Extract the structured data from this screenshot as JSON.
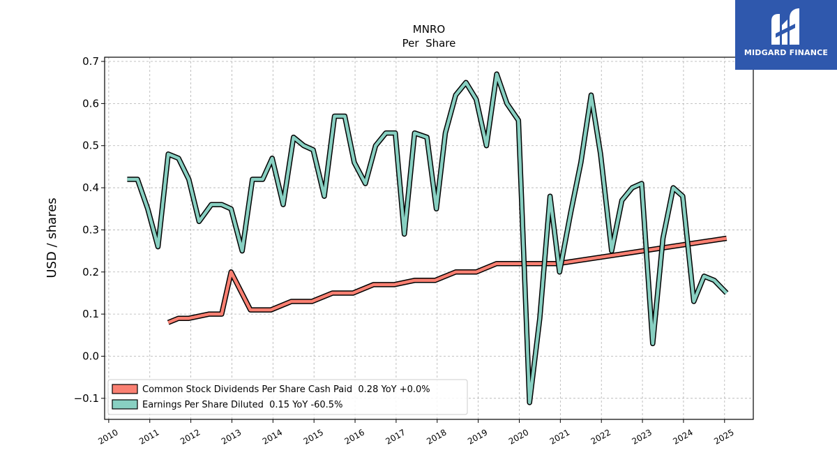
{
  "brand": {
    "name": "MIDGARD FINANCE",
    "color": "#2f58ad",
    "icon": "midgard-m-logo-icon"
  },
  "chart_data": {
    "type": "line",
    "title": "MNRO",
    "subtitle": "Per  Share",
    "xlabel": "",
    "ylabel": "USD / shares",
    "xlim": [
      2009.9,
      2025.7
    ],
    "ylim": [
      -0.15,
      0.71
    ],
    "x_ticks": [
      "2010",
      "2011",
      "2012",
      "2013",
      "2014",
      "2015",
      "2016",
      "2017",
      "2018",
      "2019",
      "2020",
      "2021",
      "2022",
      "2023",
      "2024",
      "2025"
    ],
    "y_ticks": [
      "−0.1",
      "0.0",
      "0.1",
      "0.2",
      "0.3",
      "0.4",
      "0.5",
      "0.6",
      "0.7"
    ],
    "grid": true,
    "legend_position": "lower-left",
    "series": [
      {
        "name": "Common Stock Dividends Per Share Cash Paid",
        "legend_label": "Common Stock Dividends Per Share Cash Paid  0.28 YoY +0.0%",
        "color": "#fa8072",
        "x": [
          2011.45,
          2011.7,
          2011.95,
          2012.45,
          2012.75,
          2012.98,
          2013.45,
          2013.95,
          2014.45,
          2014.95,
          2015.45,
          2015.95,
          2016.45,
          2016.95,
          2017.45,
          2017.95,
          2018.45,
          2018.95,
          2019.45,
          2019.95,
          2020.45,
          2020.95,
          2025.05
        ],
        "y": [
          0.08,
          0.09,
          0.09,
          0.1,
          0.1,
          0.2,
          0.11,
          0.11,
          0.13,
          0.13,
          0.15,
          0.15,
          0.17,
          0.17,
          0.18,
          0.18,
          0.2,
          0.2,
          0.22,
          0.22,
          0.22,
          0.22,
          0.28
        ]
      },
      {
        "name": "Earnings Per Share Diluted",
        "legend_label": "Earnings Per Share Diluted  0.15 YoY -60.5%",
        "color": "#88d0c2",
        "x": [
          2010.45,
          2010.7,
          2010.95,
          2011.2,
          2011.45,
          2011.7,
          2011.95,
          2012.2,
          2012.5,
          2012.75,
          2012.98,
          2013.25,
          2013.5,
          2013.75,
          2013.98,
          2014.25,
          2014.5,
          2014.75,
          2014.98,
          2015.25,
          2015.5,
          2015.75,
          2015.98,
          2016.25,
          2016.5,
          2016.75,
          2016.98,
          2017.2,
          2017.45,
          2017.75,
          2017.98,
          2018.2,
          2018.45,
          2018.7,
          2018.95,
          2019.2,
          2019.45,
          2019.7,
          2019.98,
          2020.25,
          2020.5,
          2020.75,
          2020.98,
          2021.25,
          2021.5,
          2021.75,
          2021.98,
          2022.25,
          2022.5,
          2022.75,
          2022.98,
          2023.25,
          2023.5,
          2023.75,
          2023.98,
          2024.25,
          2024.5,
          2024.75,
          2025.05
        ],
        "y": [
          0.42,
          0.42,
          0.35,
          0.26,
          0.48,
          0.47,
          0.42,
          0.32,
          0.36,
          0.36,
          0.35,
          0.25,
          0.42,
          0.42,
          0.47,
          0.36,
          0.52,
          0.5,
          0.49,
          0.38,
          0.57,
          0.57,
          0.46,
          0.41,
          0.5,
          0.53,
          0.53,
          0.29,
          0.53,
          0.52,
          0.35,
          0.53,
          0.62,
          0.65,
          0.61,
          0.5,
          0.67,
          0.6,
          0.56,
          -0.11,
          0.09,
          0.38,
          0.2,
          0.34,
          0.46,
          0.62,
          0.48,
          0.25,
          0.37,
          0.4,
          0.41,
          0.03,
          0.28,
          0.4,
          0.38,
          0.13,
          0.19,
          0.18,
          0.15
        ]
      }
    ]
  }
}
